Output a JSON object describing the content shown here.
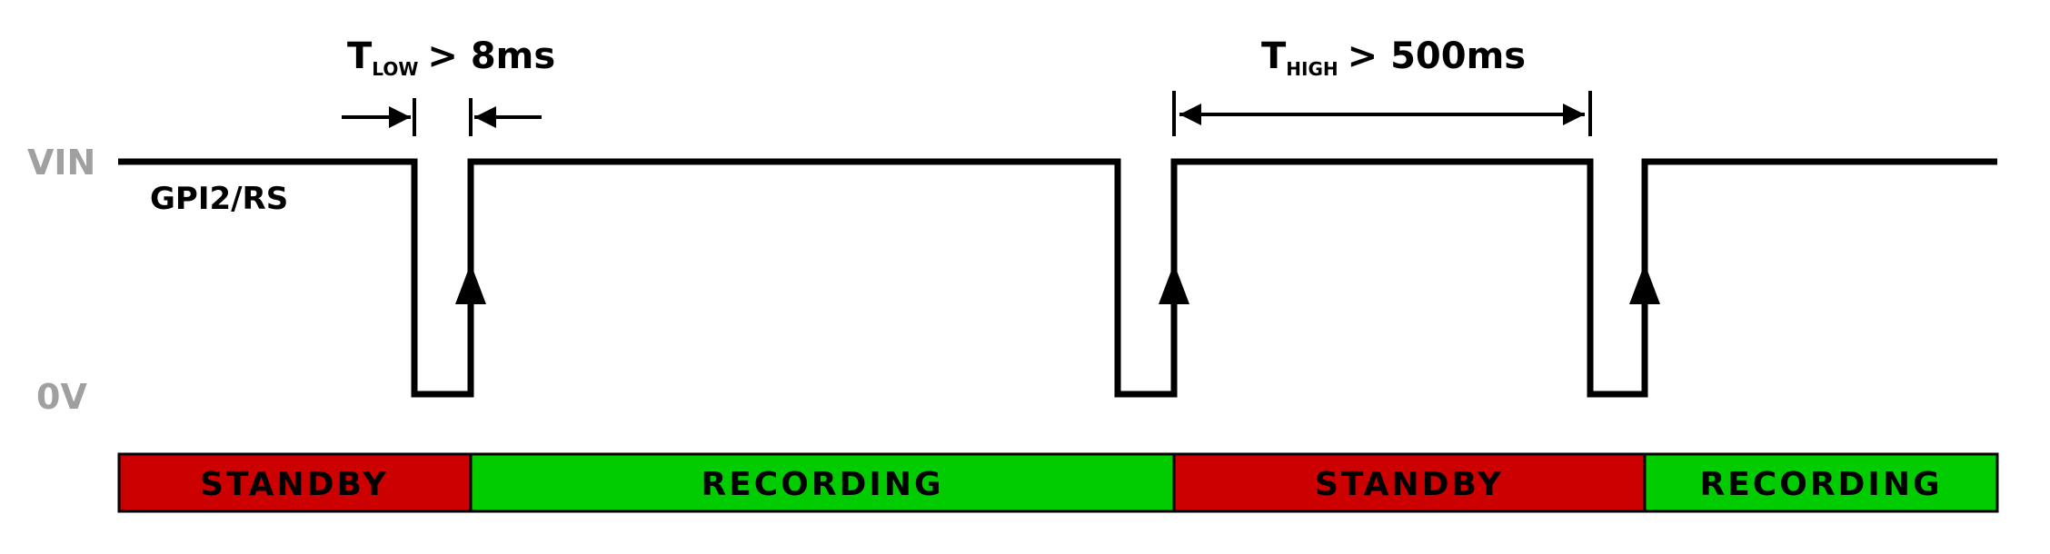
{
  "levels": {
    "high": "VIN",
    "low": "0V"
  },
  "signal_label": "GPI2/RS",
  "timing": {
    "t_low": {
      "symbol": "T",
      "subscript": "LOW",
      "relation": "> 8ms"
    },
    "t_high": {
      "symbol": "T",
      "subscript": "HIGH",
      "relation": "> 500ms"
    }
  },
  "states": [
    {
      "label": "STANDBY",
      "color": "#cc0000"
    },
    {
      "label": "RECORDING",
      "color": "#00cc00"
    },
    {
      "label": "STANDBY",
      "color": "#cc0000"
    },
    {
      "label": "RECORDING",
      "color": "#00cc00"
    }
  ]
}
